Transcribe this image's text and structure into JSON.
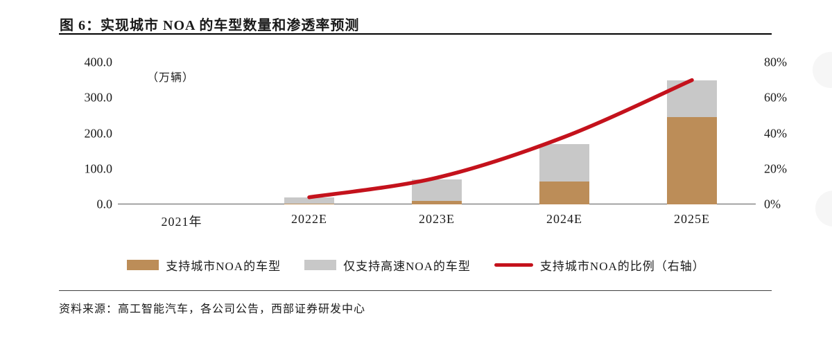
{
  "title": "图 6：实现城市 NOA 的车型数量和渗透率预测",
  "source": "资料来源：高工智能汽车，各公司公告，西部证券研发中心",
  "chart_data": {
    "type": "bar",
    "subtype": "stacked-bars-with-line",
    "title": "图 6：实现城市 NOA 的车型数量和渗透率预测",
    "unit_label": "（万辆）",
    "categories": [
      "2021年",
      "2022E",
      "2023E",
      "2024E",
      "2025E"
    ],
    "series": [
      {
        "name": "支持城市NOA的车型",
        "color": "#BC8D58",
        "values": [
          0,
          2,
          10,
          65,
          245
        ]
      },
      {
        "name": "仅支持高速NOA的车型",
        "color": "#C8C8C8",
        "values": [
          0,
          18,
          60,
          105,
          105
        ]
      }
    ],
    "line_series": {
      "name": "支持城市NOA的比例（右轴）",
      "color": "#C4121C",
      "axis": "right",
      "values": [
        null,
        4,
        15,
        38,
        70
      ]
    },
    "left_axis": {
      "min": 0,
      "max": 400,
      "ticks": [
        "400.0",
        "300.0",
        "200.0",
        "100.0",
        "0.0"
      ]
    },
    "right_axis": {
      "min": 0,
      "max": 80,
      "ticks": [
        "80%",
        "60%",
        "40%",
        "20%",
        "0%"
      ]
    },
    "legend_position": "bottom",
    "grid": false
  }
}
